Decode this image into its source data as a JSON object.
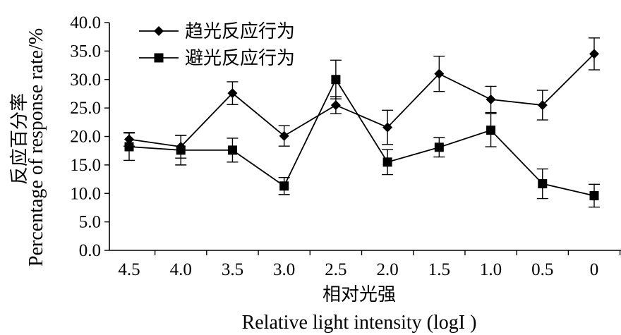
{
  "chart_data": {
    "type": "line",
    "x": [
      "4.5",
      "4.0",
      "3.5",
      "3.0",
      "2.5",
      "2.0",
      "1.5",
      "1.0",
      "0.5",
      "0"
    ],
    "series": [
      {
        "name": "趋光反应行为",
        "marker": "diamond",
        "values": [
          19.5,
          18.2,
          27.6,
          20.1,
          25.5,
          21.6,
          31.0,
          26.5,
          25.5,
          34.5
        ],
        "errors": [
          1.2,
          2.0,
          2.0,
          1.8,
          1.5,
          3.0,
          3.1,
          2.3,
          2.6,
          2.8
        ]
      },
      {
        "name": "避光反应行为",
        "marker": "square",
        "values": [
          18.2,
          17.6,
          17.6,
          11.3,
          30.0,
          15.5,
          18.1,
          21.1,
          11.7,
          9.6
        ],
        "errors": [
          2.4,
          2.6,
          2.1,
          1.5,
          3.4,
          2.2,
          1.7,
          2.9,
          2.6,
          2.0
        ]
      }
    ],
    "ylim": [
      0,
      40
    ],
    "yticks": [
      "0.0",
      "5.0",
      "10.0",
      "15.0",
      "20.0",
      "25.0",
      "30.0",
      "35.0",
      "40.0"
    ],
    "ylabel_cn": "反应百分率",
    "ylabel_en": "Percentage of response rate/%",
    "xlabel_cn": "相对光强",
    "xlabel_en": "Relative light intensity (logI )",
    "legend_position": "top-left",
    "grid": false,
    "colors": {
      "line": "#000000",
      "marker": "#000000"
    }
  }
}
